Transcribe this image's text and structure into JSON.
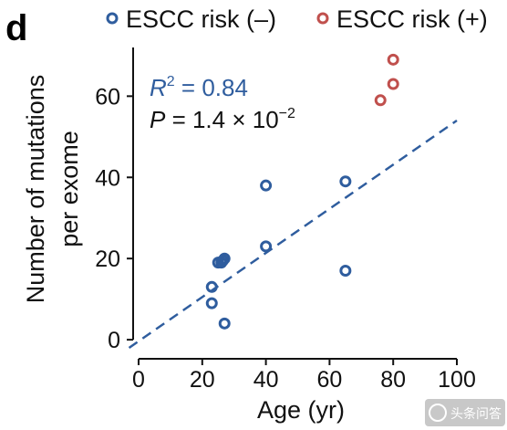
{
  "figure": {
    "panel_label": "d"
  },
  "chart_data": {
    "type": "scatter",
    "title": "",
    "xlabel": "Age (yr)",
    "ylabel_lines": [
      "Number of mutations",
      "per exome"
    ],
    "xlim": [
      0,
      100
    ],
    "ylim": [
      -2,
      72
    ],
    "xticks": [
      0,
      20,
      40,
      60,
      80,
      100
    ],
    "yticks": [
      0,
      20,
      40,
      60
    ],
    "grid": false,
    "legend_position": "top",
    "series": [
      {
        "name": "ESCC risk (–)",
        "color": "#2f5d9e",
        "marker": "open-circle",
        "points": [
          [
            23,
            9
          ],
          [
            23,
            13
          ],
          [
            25,
            19
          ],
          [
            26,
            19
          ],
          [
            26.5,
            19.5
          ],
          [
            27,
            20
          ],
          [
            27,
            4
          ],
          [
            40,
            38
          ],
          [
            40,
            23
          ],
          [
            65,
            39
          ],
          [
            65,
            17
          ]
        ]
      },
      {
        "name": "ESCC risk (+)",
        "color": "#c0504d",
        "marker": "open-circle",
        "points": [
          [
            76,
            59
          ],
          [
            80,
            63
          ],
          [
            80,
            69
          ]
        ]
      }
    ],
    "fit_line": {
      "style": "dashed",
      "color": "#2f5d9e",
      "x": [
        -3,
        100
      ],
      "y": [
        -2,
        54
      ]
    },
    "annotations": {
      "r2": {
        "label": "R",
        "sup": "2",
        "text": " = 0.84",
        "color": "#2f5d9e"
      },
      "p": {
        "label": "P",
        "text": " = 1.4 × 10",
        "sup": "−2",
        "color": "#111111"
      }
    }
  },
  "watermark": {
    "text": "头条问答"
  }
}
